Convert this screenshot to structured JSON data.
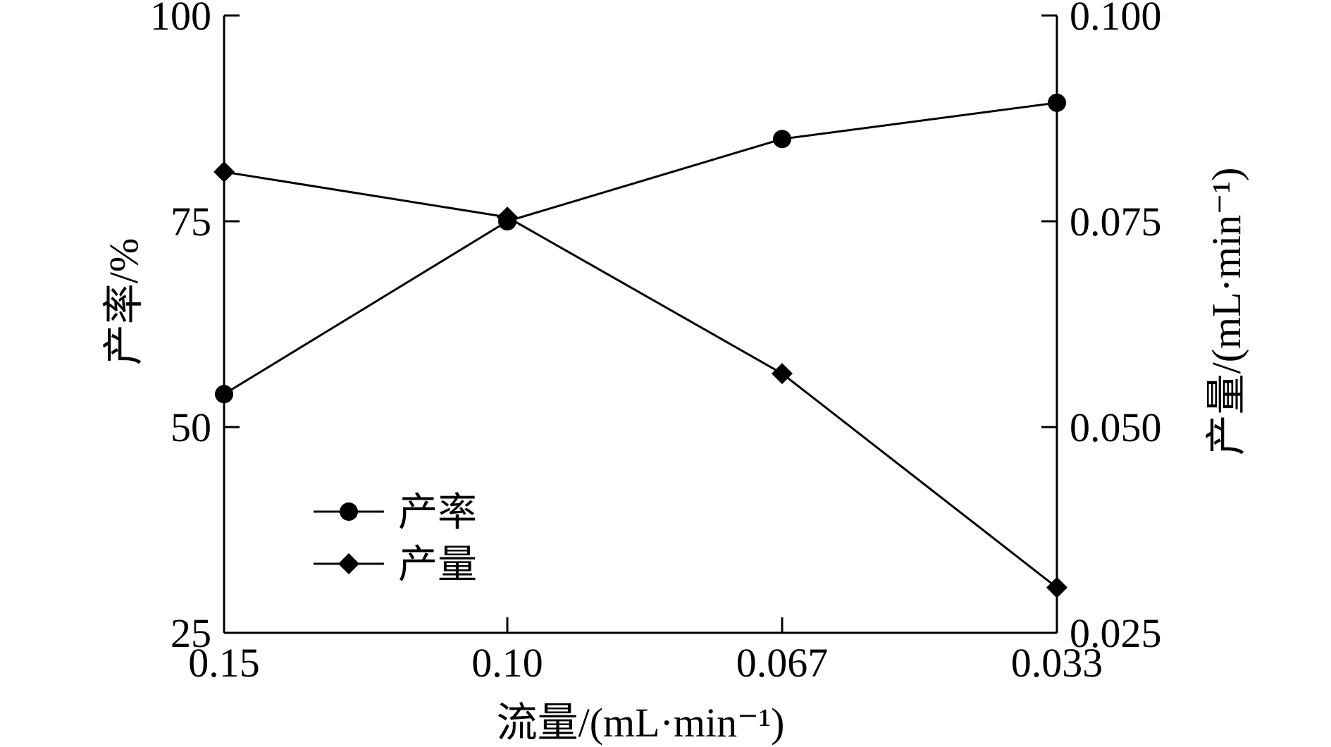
{
  "chart_data": {
    "type": "line",
    "xlabel": "流量/(mL·min⁻¹)",
    "categories": [
      "0.15",
      "0.10",
      "0.067",
      "0.033"
    ],
    "x_values": [
      0.15,
      0.1,
      0.067,
      0.033
    ],
    "y_left": {
      "label": "产率/%",
      "ylim": [
        25,
        100
      ],
      "ticks": [
        25,
        50,
        75,
        100
      ],
      "tick_labels": [
        "25",
        "50",
        "75",
        "100"
      ]
    },
    "y_right": {
      "label": "产量/(mL·min⁻¹)",
      "ylim": [
        0.025,
        0.1
      ],
      "ticks": [
        0.025,
        0.05,
        0.075,
        0.1
      ],
      "tick_labels": [
        "0.025",
        "0.050",
        "0.075",
        "0.100"
      ]
    },
    "series": [
      {
        "name": "产率",
        "axis": "left",
        "marker": "circle",
        "values": [
          54.0,
          75.0,
          85.0,
          89.4
        ]
      },
      {
        "name": "产量",
        "axis": "right",
        "marker": "diamond",
        "values": [
          0.081,
          0.0755,
          0.0565,
          0.0305
        ]
      }
    ],
    "grid": false,
    "legend_position": "bottom-left",
    "colors": {
      "line": "#000000",
      "marker": "#000000"
    }
  }
}
